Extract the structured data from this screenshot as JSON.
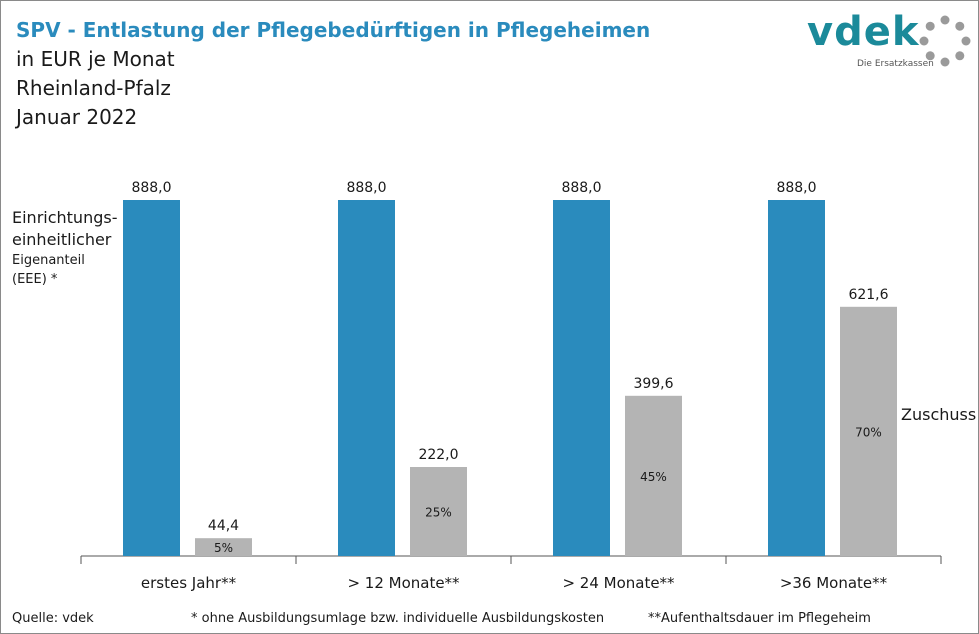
{
  "header": {
    "title": "SPV - Entlastung der Pflegebedürftigen in Pflegeheimen",
    "subtitle_1": "in EUR je Monat",
    "subtitle_2": "Rheinland-Pfalz",
    "subtitle_3": "Januar 2022"
  },
  "logo": {
    "word": "vdek",
    "tagline": "Die Ersatzkassen"
  },
  "labels": {
    "left_1": "Einrichtungs-",
    "left_2": "einheitlicher",
    "left_3": "Eigenanteil",
    "left_4": "(EEE) *",
    "zuschuss": "Zuschuss"
  },
  "footer": {
    "source": "Quelle: vdek",
    "note_1": "* ohne Ausbildungsumlage bzw. individuelle Ausbildungskosten",
    "note_2": "**Aufenthaltsdauer im Pflegeheim"
  },
  "colors": {
    "eee": "#2a8bbd",
    "zuschuss": "#b4b4b4",
    "title": "#2a8bbd"
  },
  "chart_data": {
    "type": "bar",
    "categories": [
      "erstes Jahr**",
      "> 12 Monate**",
      "> 24 Monate**",
      ">36 Monate**"
    ],
    "ylim": [
      0,
      1000
    ],
    "grid": false,
    "series": [
      {
        "name": "Einrichtungs- einheitlicher Eigenanteil (EEE) *",
        "values": [
          888.0,
          888.0,
          888.0,
          888.0
        ],
        "value_labels": [
          "888,0",
          "888,0",
          "888,0",
          "888,0"
        ]
      },
      {
        "name": "Zuschuss",
        "values": [
          44.4,
          222.0,
          399.6,
          621.6
        ],
        "value_labels": [
          "44,4",
          "222,0",
          "399,6",
          "621,6"
        ],
        "percent_labels": [
          "5%",
          "25%",
          "45%",
          "70%"
        ]
      }
    ]
  }
}
